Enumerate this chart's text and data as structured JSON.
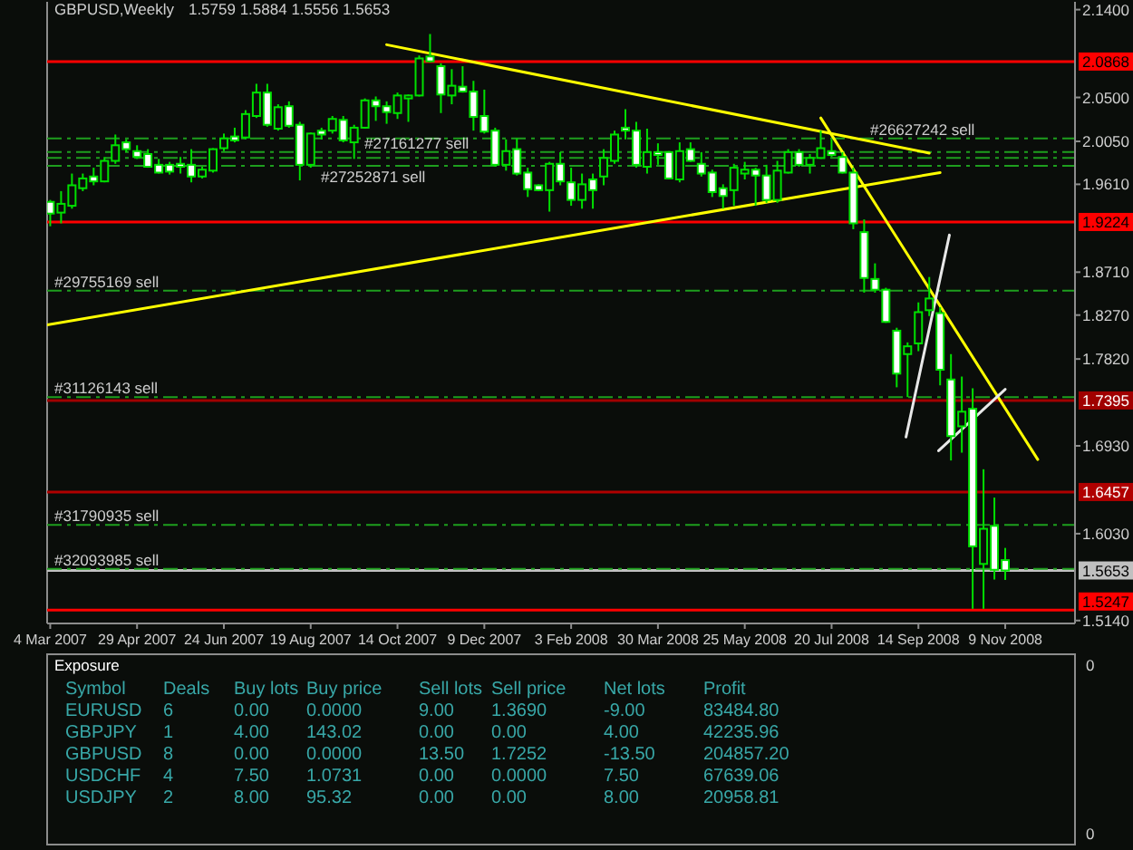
{
  "chart_data": [
    {
      "type": "candlestick",
      "title": "GBPUSD,Weekly",
      "subtitle": "1.5759 1.5884 1.5556 1.5653",
      "color": "#00e000",
      "x": [
        "2007-03-04",
        "2007-03-11",
        "2007-03-18",
        "2007-03-25",
        "2007-04-01",
        "2007-04-08",
        "2007-04-15",
        "2007-04-22",
        "2007-04-29",
        "2007-05-06",
        "2007-05-13",
        "2007-05-20",
        "2007-05-27",
        "2007-06-03",
        "2007-06-10",
        "2007-06-17",
        "2007-06-24",
        "2007-07-01",
        "2007-07-08",
        "2007-07-15",
        "2007-07-22",
        "2007-07-29",
        "2007-08-05",
        "2007-08-12",
        "2007-08-19",
        "2007-08-26",
        "2007-09-02",
        "2007-09-09",
        "2007-09-16",
        "2007-09-23",
        "2007-09-30",
        "2007-10-07",
        "2007-10-14",
        "2007-10-21",
        "2007-10-28",
        "2007-11-04",
        "2007-11-11",
        "2007-11-18",
        "2007-11-25",
        "2007-12-02",
        "2007-12-09",
        "2007-12-16",
        "2007-12-23",
        "2007-12-30",
        "2008-01-06",
        "2008-01-13",
        "2008-01-20",
        "2008-01-27",
        "2008-02-03",
        "2008-02-10",
        "2008-02-17",
        "2008-02-24",
        "2008-03-02",
        "2008-03-09",
        "2008-03-16",
        "2008-03-23",
        "2008-03-30",
        "2008-04-06",
        "2008-04-13",
        "2008-04-20",
        "2008-04-27",
        "2008-05-04",
        "2008-05-11",
        "2008-05-18",
        "2008-05-25",
        "2008-06-01",
        "2008-06-08",
        "2008-06-15",
        "2008-06-22",
        "2008-06-29",
        "2008-07-06",
        "2008-07-13",
        "2008-07-20",
        "2008-07-27",
        "2008-08-03",
        "2008-08-10",
        "2008-08-17",
        "2008-08-24",
        "2008-08-31",
        "2008-09-07",
        "2008-09-14",
        "2008-09-21",
        "2008-09-28",
        "2008-10-05",
        "2008-10-12",
        "2008-10-19",
        "2008-10-26",
        "2008-11-02",
        "2008-11-09"
      ],
      "ohlc": [
        [
          1.943,
          1.945,
          1.918,
          1.931
        ],
        [
          1.932,
          1.954,
          1.921,
          1.941
        ],
        [
          1.939,
          1.972,
          1.936,
          1.96
        ],
        [
          1.957,
          1.972,
          1.954,
          1.967
        ],
        [
          1.969,
          1.978,
          1.96,
          1.964
        ],
        [
          1.964,
          1.989,
          1.963,
          1.985
        ],
        [
          1.985,
          2.012,
          1.982,
          2.001
        ],
        [
          2.004,
          2.007,
          1.994,
          1.997
        ],
        [
          1.995,
          2.001,
          1.987,
          1.989
        ],
        [
          1.992,
          1.997,
          1.978,
          1.979
        ],
        [
          1.981,
          1.987,
          1.972,
          1.973
        ],
        [
          1.981,
          1.984,
          1.971,
          1.974
        ],
        [
          1.982,
          1.989,
          1.972,
          1.979
        ],
        [
          1.981,
          1.997,
          1.963,
          1.969
        ],
        [
          1.969,
          1.979,
          1.967,
          1.976
        ],
        [
          1.975,
          1.998,
          1.973,
          1.997
        ],
        [
          1.998,
          2.013,
          1.995,
          2.008
        ],
        [
          2.01,
          2.019,
          2.004,
          2.006
        ],
        [
          2.009,
          2.037,
          2.007,
          2.033
        ],
        [
          2.031,
          2.064,
          2.029,
          2.055
        ],
        [
          2.055,
          2.064,
          2.02,
          2.022
        ],
        [
          2.018,
          2.043,
          2.016,
          2.04
        ],
        [
          2.041,
          2.046,
          2.019,
          2.021
        ],
        [
          2.022,
          2.025,
          1.965,
          1.981
        ],
        [
          1.981,
          2.014,
          1.978,
          2.013
        ],
        [
          2.016,
          2.019,
          2.007,
          2.012
        ],
        [
          2.016,
          2.031,
          2.013,
          2.028
        ],
        [
          2.027,
          2.031,
          2.004,
          2.006
        ],
        [
          2.004,
          2.022,
          1.987,
          2.019
        ],
        [
          2.019,
          2.049,
          2.018,
          2.047
        ],
        [
          2.047,
          2.051,
          2.026,
          2.041
        ],
        [
          2.041,
          2.046,
          2.023,
          2.035
        ],
        [
          2.034,
          2.055,
          2.028,
          2.052
        ],
        [
          2.049,
          2.053,
          2.025,
          2.052
        ],
        [
          2.052,
          2.093,
          2.051,
          2.09
        ],
        [
          2.092,
          2.115,
          2.086,
          2.087
        ],
        [
          2.082,
          2.085,
          2.034,
          2.053
        ],
        [
          2.052,
          2.079,
          2.043,
          2.062
        ],
        [
          2.061,
          2.082,
          2.055,
          2.056
        ],
        [
          2.056,
          2.067,
          2.016,
          2.03
        ],
        [
          2.031,
          2.058,
          2.013,
          2.015
        ],
        [
          2.016,
          2.019,
          1.979,
          1.981
        ],
        [
          1.981,
          2.007,
          1.975,
          1.995
        ],
        [
          1.997,
          2.008,
          1.97,
          1.972
        ],
        [
          1.973,
          1.978,
          1.948,
          1.956
        ],
        [
          1.96,
          1.961,
          1.954,
          1.955
        ],
        [
          1.955,
          1.984,
          1.933,
          1.982
        ],
        [
          1.982,
          1.994,
          1.96,
          1.964
        ],
        [
          1.963,
          1.978,
          1.939,
          1.945
        ],
        [
          1.945,
          1.972,
          1.936,
          1.961
        ],
        [
          1.966,
          1.972,
          1.936,
          1.955
        ],
        [
          1.969,
          1.997,
          1.96,
          1.988
        ],
        [
          1.985,
          2.016,
          1.982,
          2.012
        ],
        [
          2.019,
          2.038,
          2.007,
          2.016
        ],
        [
          2.016,
          2.025,
          1.978,
          1.981
        ],
        [
          1.979,
          2.018,
          1.972,
          1.994
        ],
        [
          1.994,
          2.003,
          1.981,
          1.991
        ],
        [
          1.994,
          1.995,
          1.966,
          1.967
        ],
        [
          1.966,
          2.004,
          1.963,
          1.995
        ],
        [
          1.997,
          2.004,
          1.984,
          1.985
        ],
        [
          1.982,
          1.994,
          1.969,
          1.972
        ],
        [
          1.973,
          1.976,
          1.948,
          1.953
        ],
        [
          1.957,
          1.961,
          1.936,
          1.949
        ],
        [
          1.955,
          1.982,
          1.939,
          1.978
        ],
        [
          1.972,
          1.984,
          1.966,
          1.976
        ],
        [
          1.976,
          1.978,
          1.939,
          1.97
        ],
        [
          1.97,
          1.981,
          1.942,
          1.945
        ],
        [
          1.945,
          1.985,
          1.942,
          1.975
        ],
        [
          1.973,
          1.997,
          1.972,
          1.994
        ],
        [
          1.994,
          1.997,
          1.979,
          1.981
        ],
        [
          1.981,
          1.992,
          1.972,
          1.988
        ],
        [
          1.988,
          2.016,
          1.987,
          1.998
        ],
        [
          1.995,
          2.007,
          1.989,
          1.991
        ],
        [
          1.989,
          1.994,
          1.972,
          1.973
        ],
        [
          1.973,
          1.978,
          1.915,
          1.921
        ],
        [
          1.912,
          1.925,
          1.85,
          1.865
        ],
        [
          1.864,
          1.88,
          1.85,
          1.853
        ],
        [
          1.853,
          1.855,
          1.819,
          1.82
        ],
        [
          1.811,
          1.814,
          1.753,
          1.767
        ],
        [
          1.787,
          1.799,
          1.743,
          1.795
        ],
        [
          1.798,
          1.84,
          1.79,
          1.83
        ],
        [
          1.832,
          1.866,
          1.826,
          1.844
        ],
        [
          1.829,
          1.835,
          1.755,
          1.771
        ],
        [
          1.761,
          1.787,
          1.678,
          1.703
        ],
        [
          1.713,
          1.764,
          1.686,
          1.728
        ],
        [
          1.731,
          1.752,
          1.526,
          1.59
        ],
        [
          1.572,
          1.669,
          1.526,
          1.608
        ],
        [
          1.611,
          1.64,
          1.556,
          1.566
        ],
        [
          1.5759,
          1.5884,
          1.5556,
          1.5653
        ]
      ],
      "series": [
        {
          "type": "line",
          "color": "#ffff00",
          "x": [
            "2007-10-07",
            "2008-09-21"
          ],
          "values": [
            2.104,
            1.993
          ]
        },
        {
          "type": "line",
          "color": "#ffff00",
          "x": [
            "2007-03-02",
            "2008-09-28"
          ],
          "values": [
            1.817,
            1.973
          ]
        },
        {
          "type": "line",
          "color": "#ffff00",
          "x": [
            "2008-07-13",
            "2008-11-30"
          ],
          "values": [
            2.029,
            1.679
          ]
        },
        {
          "type": "line",
          "color": "#e8e8e8",
          "x": [
            "2008-09-06",
            "2008-10-04"
          ],
          "values": [
            1.702,
            1.909
          ]
        },
        {
          "type": "line",
          "color": "#e8e8e8",
          "x": [
            "2008-09-27",
            "2008-11-09"
          ],
          "values": [
            1.688,
            1.751
          ]
        }
      ],
      "xlim": [
        "2007-03-02",
        "2008-12-24"
      ],
      "xticks": [
        {
          "value": "2007-03-04",
          "label": "4 Mar 2007"
        },
        {
          "value": "2007-04-29",
          "label": "29 Apr 2007"
        },
        {
          "value": "2007-06-24",
          "label": "24 Jun 2007"
        },
        {
          "value": "2007-08-19",
          "label": "19 Aug 2007"
        },
        {
          "value": "2007-10-14",
          "label": "14 Oct 2007"
        },
        {
          "value": "2007-12-09",
          "label": "9 Dec 2007"
        },
        {
          "value": "2008-02-03",
          "label": "3 Feb 2008"
        },
        {
          "value": "2008-03-30",
          "label": "30 Mar 2008"
        },
        {
          "value": "2008-05-25",
          "label": "25 May 2008"
        },
        {
          "value": "2008-07-20",
          "label": "20 Jul 2008"
        },
        {
          "value": "2008-09-14",
          "label": "14 Sep 2008"
        },
        {
          "value": "2008-11-09",
          "label": "9 Nov 2008"
        }
      ],
      "ylim": [
        1.511,
        2.148
      ],
      "yticks": [
        {
          "value": 2.14,
          "label": "2.1400"
        },
        {
          "value": 2.05,
          "label": "2.0500"
        },
        {
          "value": 2.005,
          "label": "2.0050"
        },
        {
          "value": 1.961,
          "label": "1.9610"
        },
        {
          "value": 1.871,
          "label": "1.8710"
        },
        {
          "value": 1.827,
          "label": "1.8270"
        },
        {
          "value": 1.782,
          "label": "1.7820"
        },
        {
          "value": 1.693,
          "label": "1.6930"
        },
        {
          "value": 1.603,
          "label": "1.6030"
        },
        {
          "value": 1.514,
          "label": "1.5140"
        }
      ],
      "ref_lines": [
        {
          "axis": "y",
          "value": 2.0868,
          "label": "2.0868",
          "color": "#ff0000"
        },
        {
          "axis": "y",
          "value": 1.9224,
          "label": "1.9224",
          "color": "#ff0000"
        },
        {
          "axis": "y",
          "value": 1.7395,
          "label": "1.7395",
          "color": "#a00000"
        },
        {
          "axis": "y",
          "value": 1.6457,
          "label": "1.6457",
          "color": "#b00000"
        },
        {
          "axis": "y",
          "value": 1.5247,
          "label": "1.5247",
          "color": "#ff0000"
        },
        {
          "axis": "y",
          "value": 1.5653,
          "label": "1.5653",
          "color": "#c0c0c0"
        },
        {
          "axis": "y",
          "value": 2.008,
          "label": "#26627242 sell",
          "color": "#1e9e1e",
          "line_style": "dashed"
        },
        {
          "axis": "y",
          "value": 1.994,
          "label": "#27161277 sell",
          "color": "#1e9e1e",
          "line_style": "dashed"
        },
        {
          "axis": "y",
          "value": 1.988,
          "color": "#1e9e1e",
          "line_style": "dashed"
        },
        {
          "axis": "y",
          "value": 1.98,
          "label": "#27252871 sell",
          "color": "#1e9e1e",
          "line_style": "dashed"
        },
        {
          "axis": "y",
          "value": 1.852,
          "label": "#29755169 sell",
          "color": "#1e9e1e",
          "line_style": "dashed"
        },
        {
          "axis": "y",
          "value": 1.743,
          "label": "#31126143 sell",
          "color": "#1e9e1e",
          "line_style": "dashed"
        },
        {
          "axis": "y",
          "value": 1.612,
          "label": "#31790935 sell",
          "color": "#1e9e1e",
          "line_style": "dashed"
        },
        {
          "axis": "y",
          "value": 1.567,
          "label": "#32093985 sell",
          "color": "#1e9e1e",
          "line_style": "dashed"
        }
      ]
    },
    {
      "type": "other",
      "title": "Exposure",
      "ylabel": "Symbol",
      "categories": [
        "Deals",
        "Buy lots",
        "Buy price",
        "Sell lots",
        "Sell price",
        "Net lots",
        "Profit"
      ],
      "y_categories": [
        "EURUSD",
        "GBPJPY",
        "GBPUSD",
        "USDCHF",
        "USDJPY"
      ],
      "cell_labels": [
        [
          "6",
          "0.00",
          "0.0000",
          "9.00",
          "1.3690",
          "-9.00",
          "83484.80"
        ],
        [
          "1",
          "4.00",
          "143.02",
          "0.00",
          "0.00",
          "4.00",
          "42235.96"
        ],
        [
          "8",
          "0.00",
          "0.0000",
          "13.50",
          "1.7252",
          "-13.50",
          "204857.20"
        ],
        [
          "4",
          "7.50",
          "1.0731",
          "0.00",
          "0.0000",
          "7.50",
          "67639.06"
        ],
        [
          "2",
          "8.00",
          "95.32",
          "0.00",
          "0.00",
          "8.00",
          "20958.81"
        ]
      ],
      "annotations": [
        "0",
        "0"
      ]
    }
  ]
}
